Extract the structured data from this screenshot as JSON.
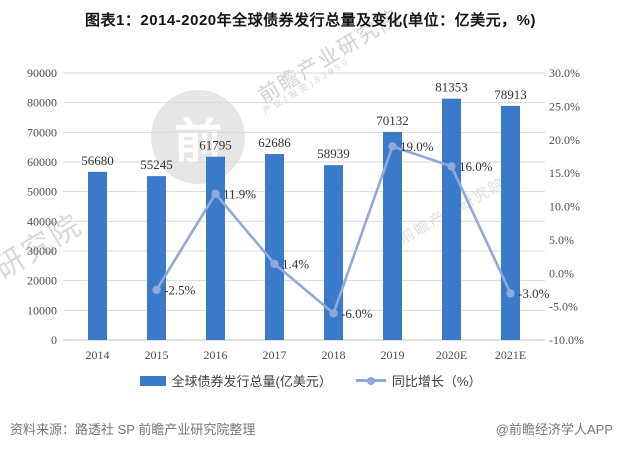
{
  "title": "图表1：2014-2020年全球债券发行总量及变化(单位：亿美元，%)",
  "watermark": {
    "text": "前瞻产业研究院",
    "subtext": "产业(股资)83959",
    "logo_glyph": "前",
    "partial": "研究院"
  },
  "footer": {
    "source": "资料来源：路透社 SP 前瞻产业研究院整理",
    "brand": "@前瞻经济学人APP"
  },
  "colors": {
    "bar": "#3b7ac9",
    "line": "#8fa9dc",
    "grid": "#dadada",
    "axis_line": "#c0c0c0",
    "tick_text": "#4d4d4d",
    "label_text": "#333333"
  },
  "chart_data": {
    "type": "bar+line",
    "categories": [
      "2014",
      "2015",
      "2016",
      "2017",
      "2018",
      "2019",
      "2020E",
      "2021E"
    ],
    "series": [
      {
        "name": "全球债券发行总量(亿美元）",
        "type": "bar",
        "axis": "left",
        "values": [
          56680,
          55245,
          61795,
          62686,
          58939,
          70132,
          81353,
          78913
        ]
      },
      {
        "name": "同比增长（%）",
        "type": "line",
        "axis": "right",
        "values": [
          null,
          -2.5,
          11.9,
          1.4,
          -6.0,
          19.0,
          16.0,
          -3.0
        ],
        "labels": [
          null,
          "-2.5%",
          "11.9%",
          "1.4%",
          "-6.0%",
          "19.0%",
          "16.0%",
          "-3.0%"
        ]
      }
    ],
    "left_axis": {
      "min": 0,
      "max": 90000,
      "step": 10000
    },
    "right_axis": {
      "min": -10,
      "max": 30,
      "step": 5,
      "format": "percent"
    },
    "grid": true,
    "legend_position": "bottom"
  }
}
